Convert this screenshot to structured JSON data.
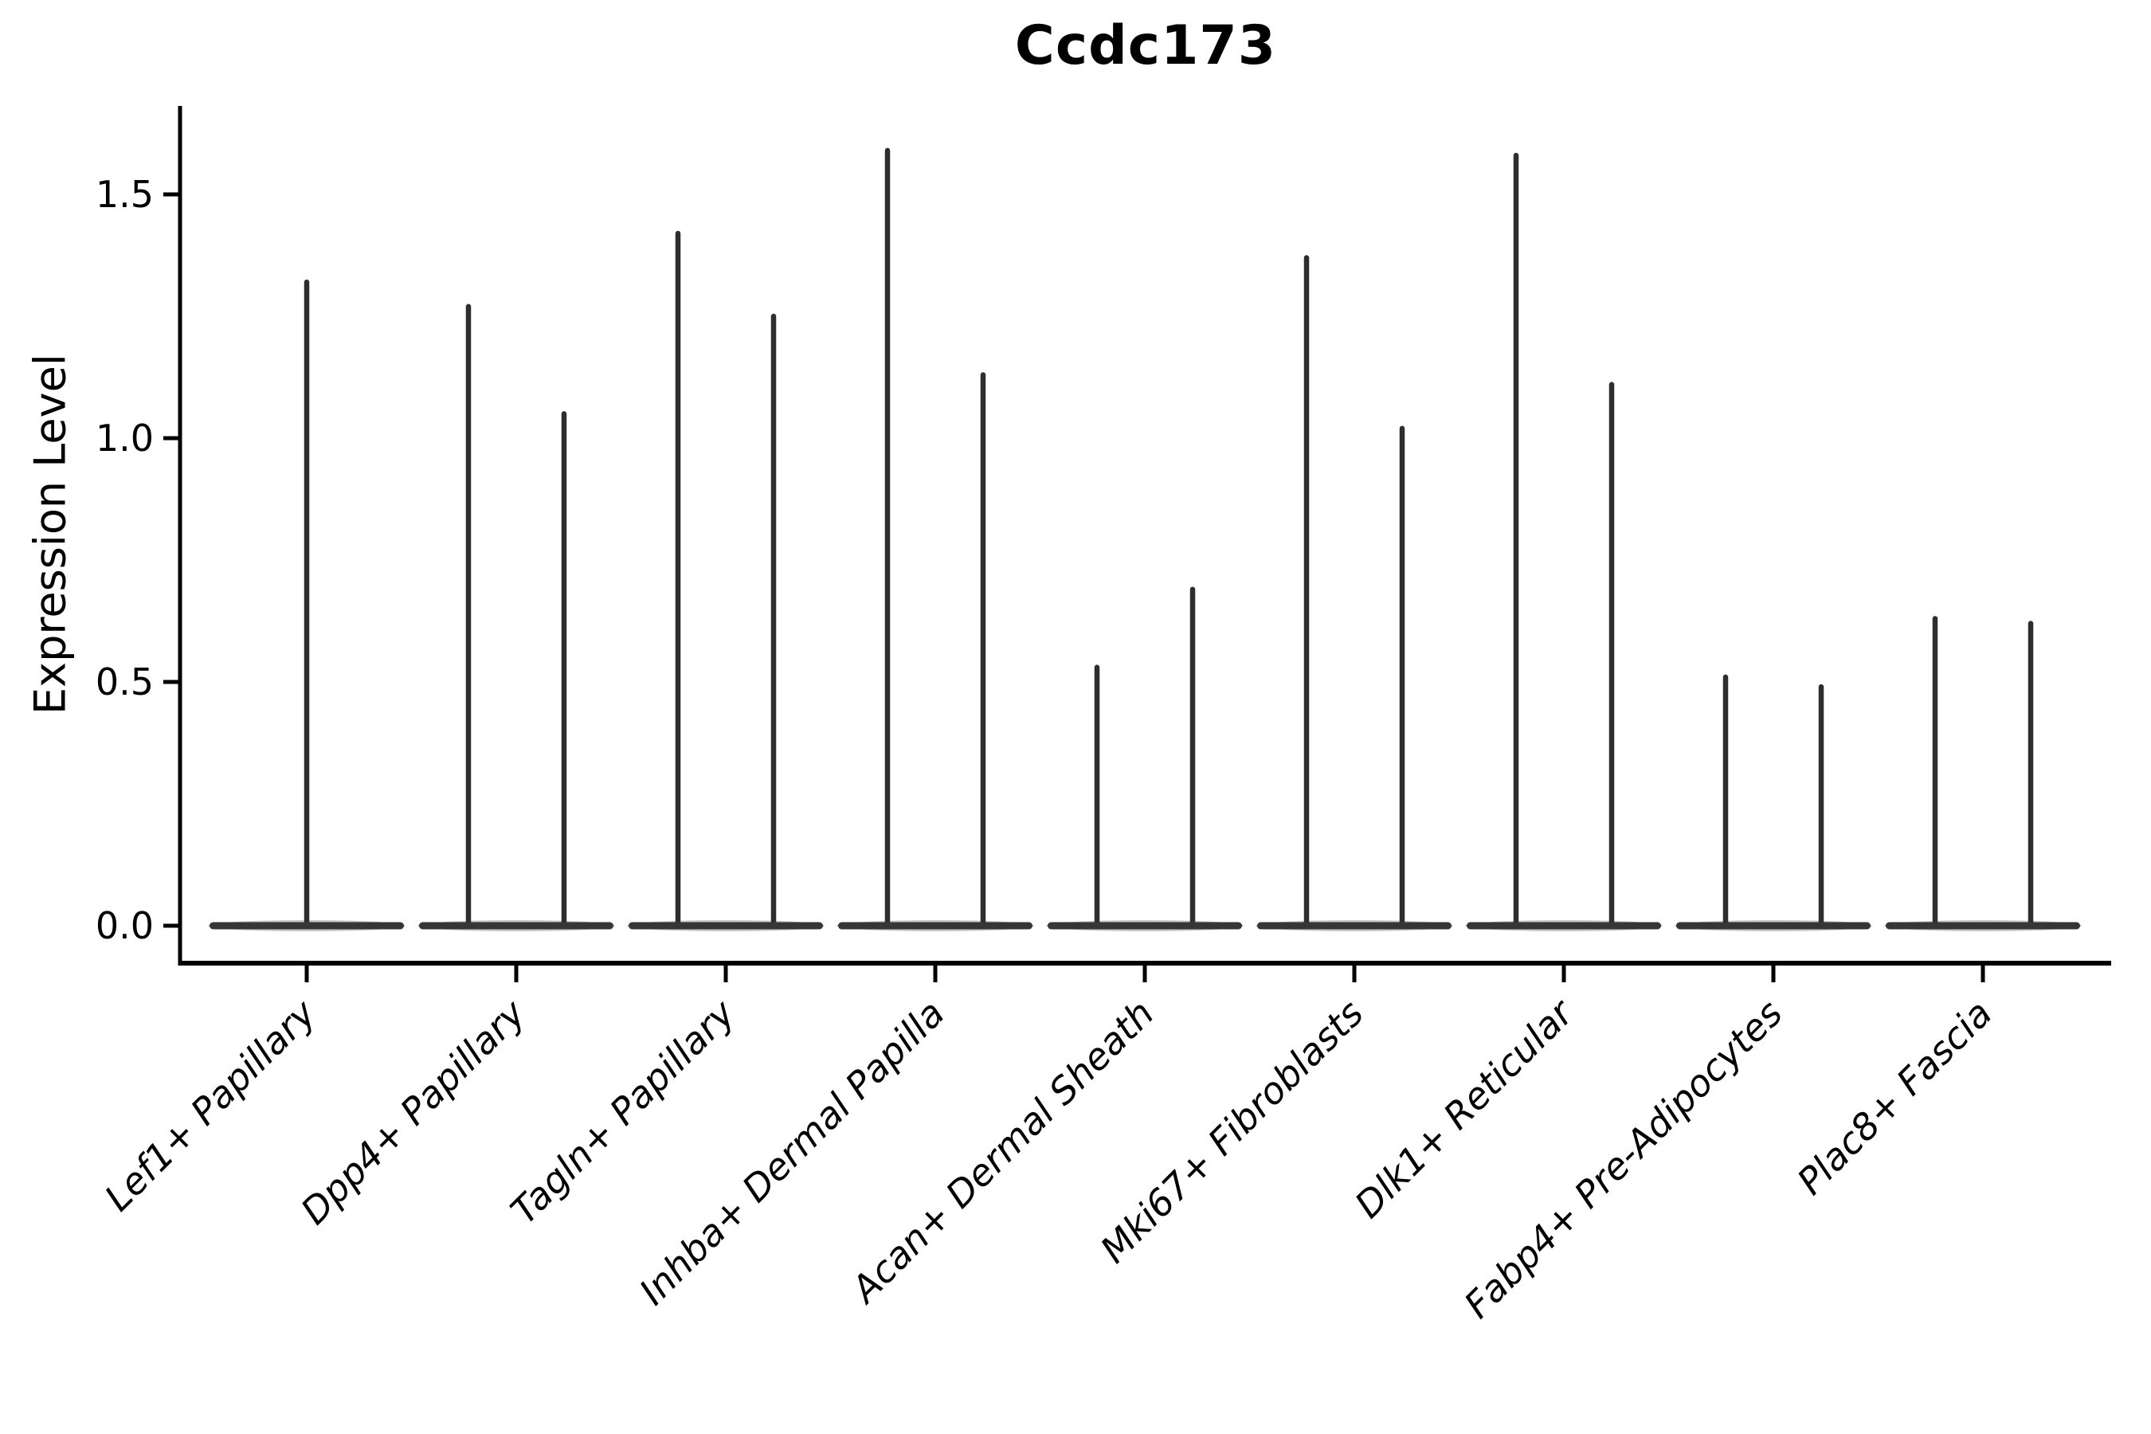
{
  "chart_data": {
    "type": "violin",
    "title": "Ccdc173",
    "ylabel": "Expression Level",
    "xlabel": "",
    "categories": [
      "Lef1+ Papillary",
      "Dpp4+ Papillary",
      "Tagln+ Papillary",
      "Inhba+ Dermal Papilla",
      "Acan+ Dermal Sheath",
      "Mki67+ Fibroblasts",
      "Dlk1+ Reticular",
      "Fabp4+ Pre-Adipocytes",
      "Plac8+ Fascia"
    ],
    "violins": [
      {
        "category": "Lef1+ Papillary",
        "spike_maxima": [
          1.32
        ]
      },
      {
        "category": "Dpp4+ Papillary",
        "spike_maxima": [
          1.27,
          1.05
        ]
      },
      {
        "category": "Tagln+ Papillary",
        "spike_maxima": [
          1.42,
          1.25
        ]
      },
      {
        "category": "Inhba+ Dermal Papilla",
        "spike_maxima": [
          1.59,
          1.13
        ]
      },
      {
        "category": "Acan+ Dermal Sheath",
        "spike_maxima": [
          0.53,
          0.69
        ]
      },
      {
        "category": "Mki67+ Fibroblasts",
        "spike_maxima": [
          1.37,
          1.02
        ]
      },
      {
        "category": "Dlk1+ Reticular",
        "spike_maxima": [
          1.58,
          1.11
        ]
      },
      {
        "category": "Fabp4+ Pre-Adipocytes",
        "spike_maxima": [
          0.51,
          0.49
        ]
      },
      {
        "category": "Plac8+ Fascia",
        "spike_maxima": [
          0.63,
          0.62
        ]
      }
    ],
    "baseline_value": 0.0,
    "ytick_labels": [
      "0.0",
      "0.5",
      "1.0",
      "1.5"
    ],
    "ytick_values": [
      0.0,
      0.5,
      1.0,
      1.5
    ],
    "ylim": [
      -0.08,
      1.68
    ],
    "grid": false,
    "legend": null
  },
  "style": {
    "background": "#ffffff",
    "violin_color": "#363636",
    "spike_color": "#2e2e2e",
    "axis_color": "#000000",
    "text_color": "#000000"
  }
}
